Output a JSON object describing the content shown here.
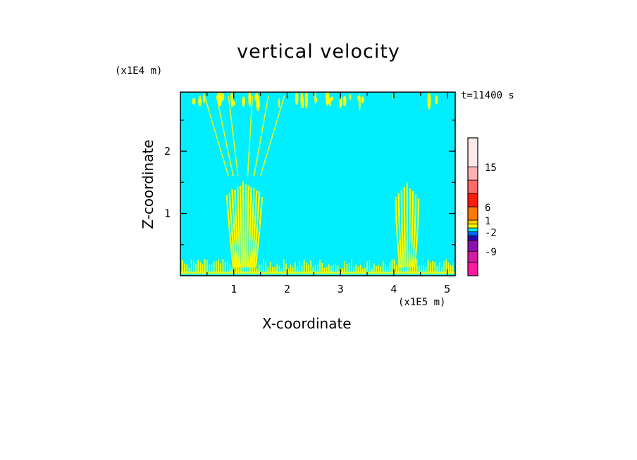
{
  "chart_data": {
    "type": "heatmap",
    "title": "vertical velocity",
    "xlabel": "X-coordinate",
    "ylabel": "Z-coordinate",
    "x_unit": "(x1E5 m)",
    "y_unit": "(x1E4 m)",
    "time_label": "t=11400 s",
    "xlim": [
      0,
      5.15
    ],
    "ylim": [
      0,
      2.95
    ],
    "x_ticks": [
      "1",
      "2",
      "3",
      "4",
      "5"
    ],
    "y_ticks": [
      "1",
      "2"
    ],
    "background_color": "#00eeff",
    "feature_color": "#ffff00",
    "colorbar": {
      "levels": [
        {
          "color": "#ff1aa0"
        },
        {
          "color": "#d41aa0"
        },
        {
          "color": "#8a12b0"
        },
        {
          "color": "#2a0aa8"
        },
        {
          "color": "#0066ff"
        },
        {
          "color": "#00eeff"
        },
        {
          "color": "#ffff00"
        },
        {
          "color": "#ffd000"
        },
        {
          "color": "#ff7a00"
        },
        {
          "color": "#ff1a10"
        },
        {
          "color": "#ff6a6a"
        },
        {
          "color": "#ffb0b0"
        },
        {
          "color": "#ffe8e8"
        }
      ],
      "labels": [
        "15",
        "6",
        "1",
        "-2",
        "-9"
      ]
    },
    "plumes": [
      {
        "x_center": 1.2,
        "z_top": 1.55,
        "width": 0.7
      },
      {
        "x_center": 4.25,
        "z_top": 1.5,
        "width": 0.45
      }
    ]
  }
}
